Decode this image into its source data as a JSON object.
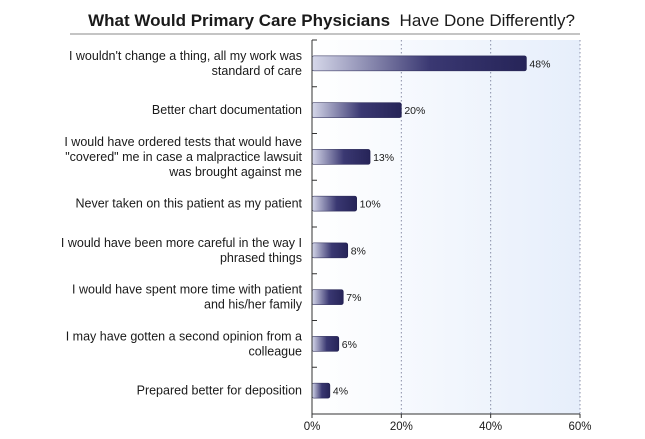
{
  "chart_data": {
    "type": "bar",
    "orientation": "horizontal",
    "title_bold": "What Would Primary Care Physicians",
    "title_rest": "Have Done Differently?",
    "categories": [
      [
        "I wouldn't change a thing, all my work was",
        "standard of care"
      ],
      [
        "Better chart documentation"
      ],
      [
        "I would have ordered tests that would have",
        "\"covered\" me in case a malpractice lawsuit",
        "was brought against me"
      ],
      [
        "Never taken on this patient as my patient"
      ],
      [
        "I would have been more careful in the way I",
        "phrased things"
      ],
      [
        "I would have spent more time with patient",
        "and his/her family"
      ],
      [
        "I may have gotten a second opinion from a",
        "colleague"
      ],
      [
        "Prepared better for deposition"
      ]
    ],
    "values": [
      48,
      20,
      13,
      10,
      8,
      7,
      6,
      4
    ],
    "value_labels": [
      "48%",
      "20%",
      "13%",
      "10%",
      "8%",
      "7%",
      "6%",
      "4%"
    ],
    "xlim": [
      0,
      60
    ],
    "x_ticks": [
      0,
      20,
      40,
      60
    ],
    "x_tick_labels": [
      "0%",
      "20%",
      "40%",
      "60%"
    ],
    "colors": {
      "bar": "#2a2860",
      "bar_light": "#cfd2e8",
      "plot_bg": "#eef3fb"
    },
    "grid": true
  }
}
